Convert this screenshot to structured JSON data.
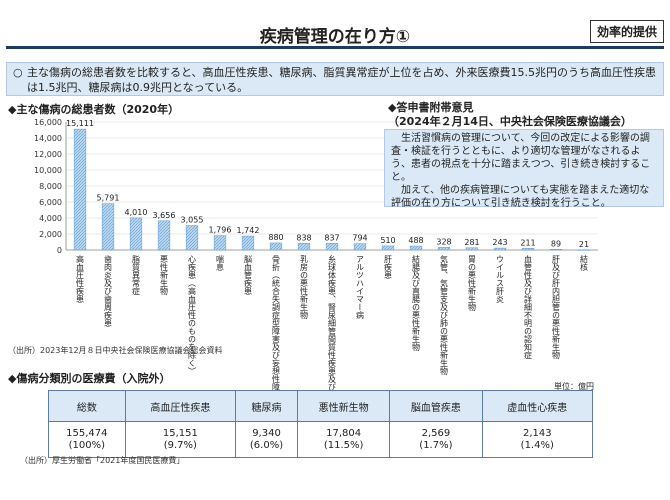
{
  "header": {
    "title": "疾病管理の在り方①",
    "badge": "効率的提供"
  },
  "summary": {
    "mark": "○",
    "text": "主な傷病の総患者数を比較すると、高血圧性疾患、糖尿病、脂質異常症が上位を占め、外来医療費15.5兆円のうち高血圧性疾患は1.5兆円、糖尿病は0.9兆円となっている。"
  },
  "chart_data": {
    "type": "bar",
    "title": "◆主な傷病の総患者数（2020年）",
    "ylim": [
      0,
      16000
    ],
    "yticks": [
      "0",
      "2,000",
      "4,000",
      "6,000",
      "8,000",
      "10,000",
      "12,000",
      "14,000",
      "16,000"
    ],
    "categories": [
      "高血圧性疾患",
      "歯肉炎及び歯周疾患",
      "脂質異常症",
      "悪性新生物",
      "心疾患（高血圧性のものを除く）",
      "喘息",
      "脳血管疾患",
      "骨折（統合失調症型障害及び妄想性障害）",
      "乳房の悪性新生物",
      "糸球体疾患、腎尿細管間質性疾患及び腎不全",
      "アルツハイマー病",
      "肝疾患",
      "結腸及び直腸の悪性新生物",
      "気管、気管支及び肺の悪性新生物",
      "胃の悪性新生物",
      "ウイルス肝炎",
      "血管性及び詳細不明の認知症",
      "肝及び肝内胆管の悪性新生物",
      "結核"
    ],
    "values": [
      15111,
      5791,
      4010,
      3656,
      3055,
      1796,
      1742,
      880,
      838,
      837,
      794,
      510,
      488,
      328,
      281,
      243,
      211,
      89,
      21
    ],
    "value_labels": [
      "15,111",
      "5,791",
      "4,010",
      "3,656",
      "3,055",
      "1,796",
      "1,742",
      "880",
      "838",
      "837",
      "794",
      "510",
      "488",
      "328",
      "281",
      "243",
      "211",
      "89",
      "21"
    ],
    "bar_color": "#9dc3e6",
    "bar_hatch_color": "#5b9bd5"
  },
  "chart_source": "（出所）2023年12月８日中央社会保険医療協議会総会資料",
  "note": {
    "title_line1": "◆答申書附帯意見",
    "title_line2": "（2024年２月14日、中央社会保険医療協議会）",
    "para1": "生活習慣病の管理について、今回の改定による影響の調査・検証を行うとともに、より適切な管理がなされるよう、患者の視点を十分に踏まえつつ、引き続き検討すること。",
    "para2": "加えて、他の疾病管理についても実態を踏まえた適切な評価の在り方について引き続き検討を行うこと。"
  },
  "cost_table": {
    "title": "◆傷病分類別の医療費（入院外）",
    "unit": "単位：億円",
    "headers": [
      "総数",
      "高血圧性疾患",
      "糖尿病",
      "悪性新生物",
      "脳血管疾患",
      "虚血性心疾患"
    ],
    "values": [
      "155,474",
      "15,151",
      "9,340",
      "17,804",
      "2,569",
      "2,143"
    ],
    "shares": [
      "(100%)",
      "(9.7%)",
      "(6.0%)",
      "(11.5%)",
      "(1.7%)",
      "(1.4%)"
    ],
    "source": "（出所）厚生労働省「2021年度国民医療費」"
  }
}
